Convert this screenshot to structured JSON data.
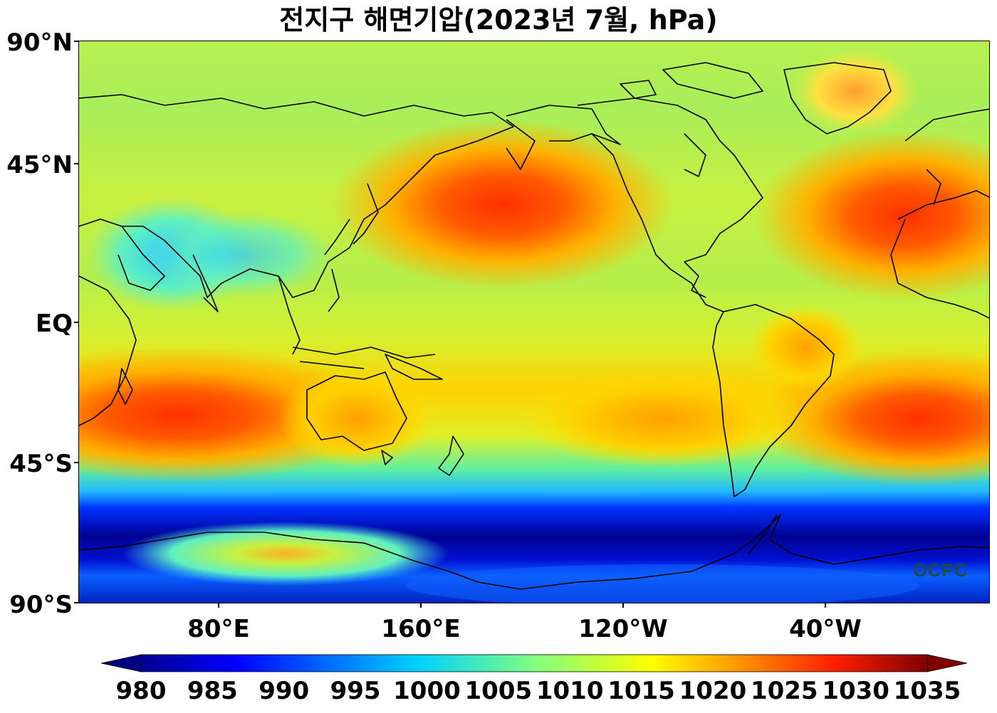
{
  "title": "전지구 해면기압(2023년 7월, hPa)",
  "map": {
    "lat_labels": [
      "90°N",
      "45°N",
      "EQ",
      "45°S",
      "90°S"
    ],
    "lon_labels": [
      "80°E",
      "160°E",
      "120°W",
      "40°W"
    ],
    "logo_text": "OCPC",
    "features": [
      "north-pacific-high",
      "azores-high",
      "south-indian-high",
      "south-atlantic-high",
      "australian-high",
      "southern-ocean-low-belt",
      "coastlines"
    ]
  },
  "colorbar": {
    "ticks": [
      "980",
      "985",
      "990",
      "995",
      "1000",
      "1005",
      "1010",
      "1015",
      "1020",
      "1025",
      "1030",
      "1035"
    ],
    "colormap": "jet",
    "range": [
      980,
      1035
    ],
    "extend": "both"
  }
}
